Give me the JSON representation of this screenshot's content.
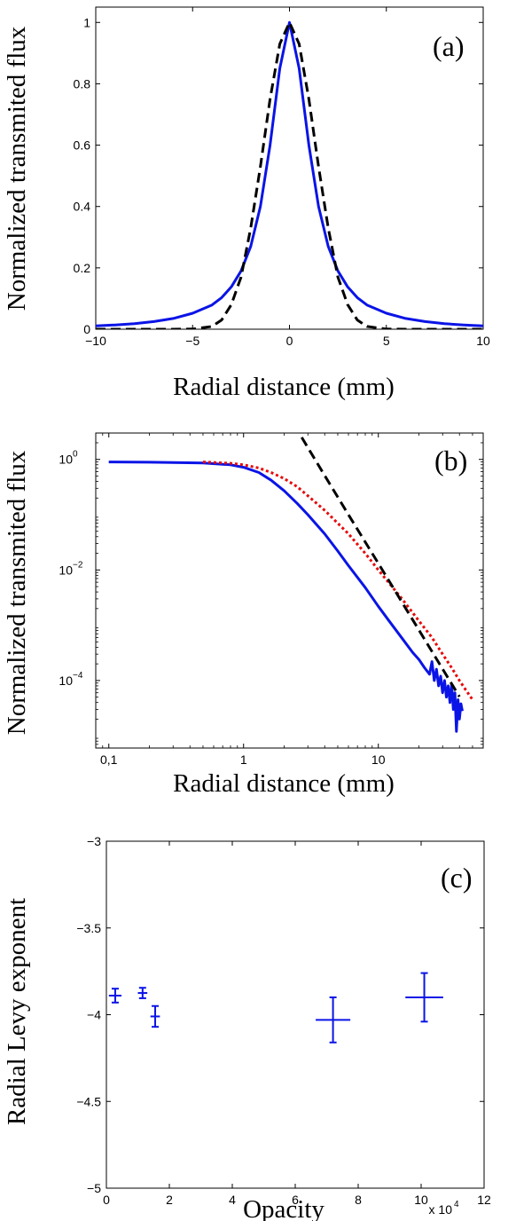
{
  "chart_data": [
    {
      "type": "line",
      "panel_label": "(a)",
      "xlabel": "Radial distance (mm)",
      "ylabel": "Normalized transmited flux",
      "xlim": [
        -10,
        10
      ],
      "ylim": [
        0,
        1.05
      ],
      "xticks": [
        -10,
        -5,
        0,
        5,
        10
      ],
      "xtick_labels": [
        "−10",
        "−5",
        "0",
        "5",
        "10"
      ],
      "yticks": [
        0,
        0.2,
        0.4,
        0.6,
        0.8,
        1
      ],
      "ytick_labels": [
        "0",
        "0.2",
        "0.4",
        "0.6",
        "0.8",
        "1"
      ],
      "grid": false,
      "series": [
        {
          "style": "solid",
          "color": "#0a14e6",
          "x": [
            -10,
            -9,
            -8,
            -7,
            -6,
            -5,
            -4,
            -3.5,
            -3,
            -2.5,
            -2,
            -1.5,
            -1,
            -0.5,
            0,
            0.5,
            1,
            1.5,
            2,
            2.5,
            3,
            3.5,
            4,
            5,
            6,
            7,
            8,
            9,
            10
          ],
          "y": [
            0.011,
            0.014,
            0.018,
            0.025,
            0.035,
            0.052,
            0.079,
            0.103,
            0.138,
            0.19,
            0.27,
            0.4,
            0.6,
            0.85,
            1.0,
            0.85,
            0.6,
            0.4,
            0.27,
            0.19,
            0.138,
            0.103,
            0.079,
            0.052,
            0.035,
            0.025,
            0.018,
            0.014,
            0.011
          ]
        },
        {
          "style": "dashed",
          "color": "#000000",
          "x": [
            -10,
            -6,
            -5,
            -4,
            -3.5,
            -3,
            -2.5,
            -2,
            -1.5,
            -1,
            -0.5,
            0,
            0.5,
            1,
            1.5,
            2,
            2.5,
            3,
            3.5,
            4,
            5,
            6,
            10
          ],
          "y": [
            0,
            0,
            0.0005,
            0.009,
            0.03,
            0.08,
            0.17,
            0.33,
            0.53,
            0.75,
            0.93,
            1.0,
            0.93,
            0.75,
            0.53,
            0.33,
            0.17,
            0.08,
            0.03,
            0.009,
            0.0005,
            0,
            0
          ]
        }
      ]
    },
    {
      "type": "line",
      "panel_label": "(b)",
      "xlabel": "Radial distance (mm)",
      "ylabel": "Normalized transmited flux",
      "xscale": "log",
      "yscale": "log",
      "xlim": [
        0.08,
        60
      ],
      "ylim": [
        6e-06,
        3
      ],
      "xticks": [
        0.1,
        1,
        10
      ],
      "xtick_labels": [
        "0,1",
        "1",
        "10"
      ],
      "yticks": [
        1,
        0.01,
        0.0001
      ],
      "ytick_base": [
        "10",
        "10",
        "10"
      ],
      "ytick_exp": [
        "0",
        "−2",
        "−4"
      ],
      "grid": false,
      "series": [
        {
          "style": "solid",
          "color": "#0a14e6",
          "x": [
            0.1,
            0.2,
            0.5,
            0.8,
            1,
            1.3,
            1.6,
            2,
            2.5,
            3,
            4,
            5,
            6,
            8,
            10,
            12,
            15,
            18,
            20,
            22,
            24,
            25,
            26,
            27,
            28,
            29,
            30,
            31,
            32,
            33,
            34,
            35,
            36,
            37,
            38,
            39,
            40,
            41,
            42
          ],
          "y": [
            0.9,
            0.89,
            0.86,
            0.8,
            0.72,
            0.58,
            0.42,
            0.27,
            0.16,
            0.1,
            0.045,
            0.022,
            0.012,
            0.0048,
            0.0022,
            0.0012,
            0.00058,
            0.00032,
            0.00024,
            0.00017,
            0.00013,
            0.00022,
            0.0001,
            0.00016,
            8e-05,
            0.00012,
            6e-05,
            0.0001,
            5e-05,
            8e-05,
            4e-05,
            8.5e-05,
            3e-05,
            6e-05,
            1.2e-05,
            4.5e-05,
            2e-05,
            3.8e-05,
            2.8e-05
          ]
        },
        {
          "style": "dotted",
          "color": "#e60a0a",
          "x": [
            0.5,
            0.8,
            1,
            1.3,
            1.6,
            2,
            2.5,
            3,
            4,
            5,
            6,
            8,
            10,
            12,
            15,
            20,
            25,
            30,
            35,
            40,
            45,
            50
          ],
          "y": [
            0.9,
            0.85,
            0.8,
            0.7,
            0.58,
            0.45,
            0.32,
            0.22,
            0.12,
            0.07,
            0.045,
            0.02,
            0.01,
            0.0058,
            0.003,
            0.0012,
            0.0006,
            0.0003,
            0.00017,
            0.0001,
            6.5e-05,
            4.5e-05
          ]
        },
        {
          "style": "dashed",
          "color": "#000000",
          "x": [
            2.7,
            4,
            6,
            10,
            20,
            40
          ],
          "y": [
            2.5,
            0.51,
            0.1,
            0.0132,
            0.00082,
            5.1e-05
          ]
        }
      ]
    },
    {
      "type": "scatter",
      "panel_label": "(c)",
      "xlabel": "Opacity",
      "ylabel": "Radial Levy exponent",
      "x_multiplier": "x 10",
      "x_multiplier_exp": "4",
      "xlim": [
        0,
        12
      ],
      "ylim": [
        -5,
        -3
      ],
      "xticks": [
        0,
        2,
        4,
        6,
        8,
        10,
        12
      ],
      "xtick_labels": [
        "0",
        "2",
        "4",
        "6",
        "8",
        "10",
        "12"
      ],
      "yticks": [
        -3,
        -3.5,
        -4,
        -4.5,
        -5
      ],
      "ytick_labels": [
        "−3",
        "−3.5",
        "−4",
        "−4.5",
        "−5"
      ],
      "grid": false,
      "color": "#0a14e6",
      "points": [
        {
          "x": 0.28,
          "y": -3.89,
          "xerr": 0.2,
          "yerr": 0.04
        },
        {
          "x": 1.15,
          "y": -3.875,
          "xerr": 0.15,
          "yerr": 0.03
        },
        {
          "x": 1.55,
          "y": -4.01,
          "xerr": 0.15,
          "yerr": 0.06
        },
        {
          "x": 7.2,
          "y": -4.03,
          "xerr": 0.55,
          "yerr": 0.13
        },
        {
          "x": 10.1,
          "y": -3.9,
          "xerr": 0.6,
          "yerr": 0.14
        }
      ]
    }
  ]
}
